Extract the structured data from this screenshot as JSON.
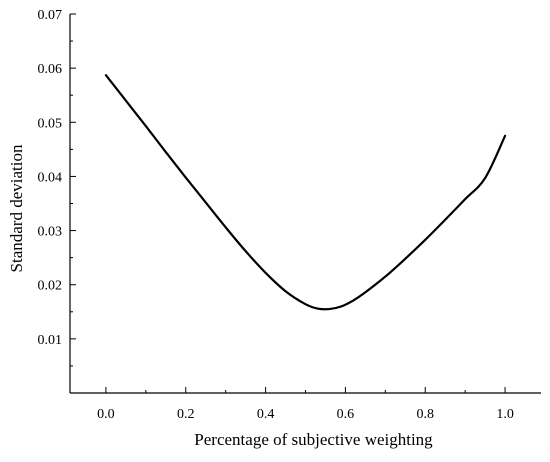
{
  "chart_data": {
    "type": "line",
    "title": "",
    "xlabel": "Percentage of subjective weighting",
    "ylabel": "Standard deviation",
    "xlim": [
      -0.09,
      1.09
    ],
    "ylim": [
      0.0,
      0.07
    ],
    "x_ticks": [
      0.0,
      0.2,
      0.4,
      0.6,
      0.8,
      1.0
    ],
    "x_tick_labels": [
      "0.0",
      "0.2",
      "0.4",
      "0.6",
      "0.8",
      "1.0"
    ],
    "y_ticks": [
      0.01,
      0.02,
      0.03,
      0.04,
      0.05,
      0.06,
      0.07
    ],
    "y_tick_labels": [
      "0.01",
      "0.02",
      "0.03",
      "0.04",
      "0.05",
      "0.06",
      "0.07"
    ],
    "grid": false,
    "legend": "none",
    "line_color": "#000000",
    "series": [
      {
        "x": [
          0.0,
          0.05,
          0.1,
          0.15,
          0.2,
          0.25,
          0.3,
          0.35,
          0.4,
          0.45,
          0.5,
          0.53,
          0.56,
          0.59,
          0.62,
          0.65,
          0.7,
          0.75,
          0.8,
          0.85,
          0.9,
          0.95,
          1.0
        ],
        "y": [
          0.0587,
          0.054,
          0.0493,
          0.0445,
          0.0398,
          0.0352,
          0.0306,
          0.0262,
          0.0222,
          0.0188,
          0.0164,
          0.0156,
          0.0155,
          0.016,
          0.0171,
          0.0186,
          0.0215,
          0.0248,
          0.0283,
          0.032,
          0.0358,
          0.0397,
          0.0475
        ]
      }
    ]
  }
}
